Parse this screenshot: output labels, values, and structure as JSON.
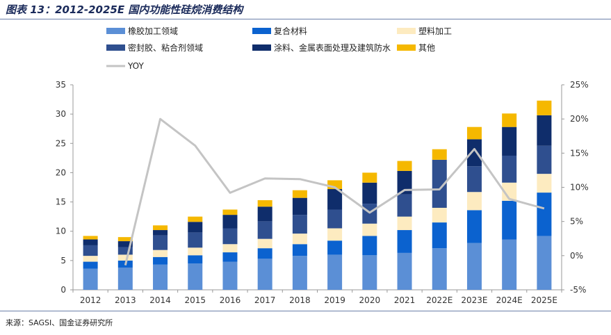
{
  "title": "图表 13：2012-2025E 国内功能性硅烷消费结构",
  "source": "来源：SAGSI、国金证券研究所",
  "chart_data": {
    "type": "bar",
    "stacked": true,
    "categories": [
      "2012",
      "2013",
      "2014",
      "2015",
      "2016",
      "2017",
      "2018",
      "2019",
      "2020",
      "2021",
      "2022E",
      "2023E",
      "2024E",
      "2025E"
    ],
    "series": [
      {
        "name": "橡胶加工领域",
        "color": "#5b8fd6",
        "values": [
          3.6,
          3.8,
          4.3,
          4.5,
          4.8,
          5.3,
          5.8,
          6.0,
          5.9,
          6.3,
          7.1,
          8.0,
          8.6,
          9.2
        ]
      },
      {
        "name": "复合材料",
        "color": "#0b62cf",
        "values": [
          1.2,
          1.2,
          1.3,
          1.4,
          1.6,
          1.8,
          2.0,
          2.4,
          3.3,
          3.9,
          4.4,
          5.6,
          6.6,
          7.4
        ]
      },
      {
        "name": "塑料加工",
        "color": "#fdebc0",
        "values": [
          1.0,
          1.0,
          1.2,
          1.3,
          1.4,
          1.6,
          1.8,
          2.1,
          2.1,
          2.3,
          2.5,
          3.1,
          3.1,
          3.2
        ]
      },
      {
        "name": "密封胶、粘合剂领域",
        "color": "#2f4f8f",
        "values": [
          1.8,
          1.3,
          2.5,
          2.6,
          2.7,
          3.0,
          3.2,
          3.2,
          3.4,
          3.8,
          8.2,
          4.4,
          4.6,
          4.8
        ]
      },
      {
        "name": "涂料、金属表面处理及建筑防水",
        "color": "#0f2d6b",
        "values": [
          1.0,
          1.0,
          0.9,
          1.8,
          2.3,
          2.5,
          2.9,
          3.5,
          3.6,
          4.0,
          0.0,
          4.6,
          4.9,
          5.2
        ]
      },
      {
        "name": "其他",
        "color": "#f5b800",
        "values": [
          0.6,
          0.7,
          0.8,
          0.9,
          0.9,
          1.1,
          1.3,
          1.5,
          1.7,
          1.7,
          1.8,
          2.1,
          2.3,
          2.5
        ]
      }
    ],
    "line": {
      "name": "YOY",
      "color": "#c4c4c4",
      "axis": "right",
      "values": [
        null,
        -1.4,
        20.0,
        16.1,
        9.2,
        11.3,
        11.2,
        10.0,
        6.3,
        9.6,
        9.7,
        15.6,
        8.3,
        6.9
      ]
    },
    "ylim": [
      0,
      35
    ],
    "yticks": [
      "0",
      "5",
      "10",
      "15",
      "20",
      "25",
      "30",
      "35"
    ],
    "y2lim": [
      -5,
      25
    ],
    "y2ticks": [
      "-5%",
      "0%",
      "5%",
      "10%",
      "15%",
      "20%",
      "25%"
    ],
    "legend_position": "top-left",
    "grid": false
  }
}
